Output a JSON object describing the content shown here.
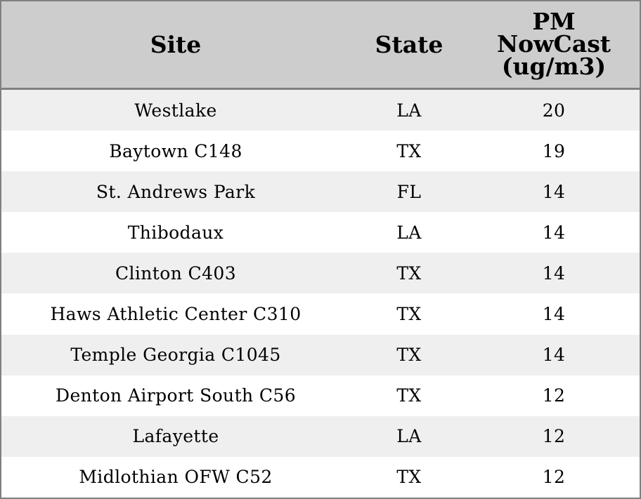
{
  "chart_data": {
    "type": "table",
    "columns": [
      "Site",
      "State",
      "PM\nNowCast\n(ug/m3)"
    ],
    "header_lines": {
      "site": "Site",
      "state": "State",
      "pm": [
        "PM",
        "NowCast",
        "(ug/m3)"
      ]
    },
    "rows": [
      {
        "site": "Westlake",
        "state": "LA",
        "pm": 20
      },
      {
        "site": "Baytown C148",
        "state": "TX",
        "pm": 19
      },
      {
        "site": "St. Andrews Park",
        "state": "FL",
        "pm": 14
      },
      {
        "site": "Thibodaux",
        "state": "LA",
        "pm": 14
      },
      {
        "site": "Clinton C403",
        "state": "TX",
        "pm": 14
      },
      {
        "site": "Haws Athletic Center C310",
        "state": "TX",
        "pm": 14
      },
      {
        "site": "Temple Georgia C1045",
        "state": "TX",
        "pm": 14
      },
      {
        "site": "Denton Airport South C56",
        "state": "TX",
        "pm": 12
      },
      {
        "site": "Lafayette",
        "state": "LA",
        "pm": 12
      },
      {
        "site": "Midlothian OFW C52",
        "state": "TX",
        "pm": 12
      }
    ]
  },
  "colors": {
    "header_background": "#cdcdcd",
    "stripe_background": "#efefef",
    "row_background": "#ffffff",
    "border": "#808080",
    "text": "#000000"
  }
}
